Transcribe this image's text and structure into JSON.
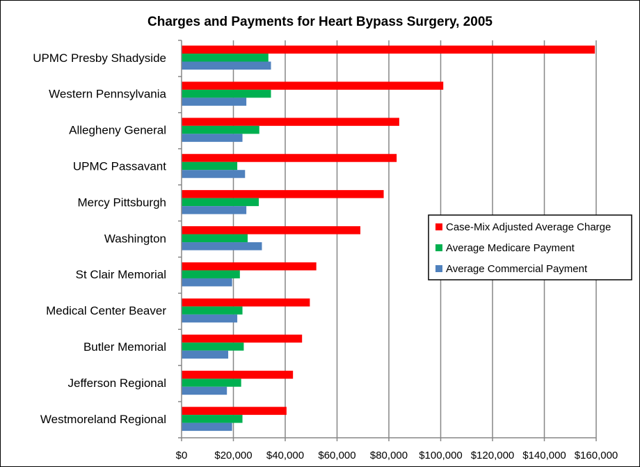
{
  "chart_data": {
    "type": "bar",
    "orientation": "horizontal",
    "title": "Charges and Payments for Heart Bypass Surgery, 2005",
    "categories": [
      "UPMC Presby Shadyside",
      "Western Pennsylvania",
      "Allegheny General",
      "UPMC Passavant",
      "Mercy Pittsburgh",
      "Washington",
      "St Clair Memorial",
      "Medical Center Beaver",
      "Butler Memorial",
      "Jefferson Regional",
      "Westmoreland Regional"
    ],
    "series": [
      {
        "name": "Case-Mix Adjusted Average Charge",
        "color": "#ff0000",
        "values": [
          159500,
          101000,
          84000,
          83000,
          78000,
          69000,
          52000,
          49500,
          46500,
          43000,
          40500
        ]
      },
      {
        "name": "Average Medicare Payment",
        "color": "#00b050",
        "values": [
          33500,
          34500,
          30000,
          21500,
          29800,
          25500,
          22500,
          23500,
          24000,
          23000,
          23500
        ]
      },
      {
        "name": "Average Commercial Payment",
        "color": "#4f81bd",
        "values": [
          34500,
          25000,
          23500,
          24500,
          25000,
          31000,
          19500,
          21500,
          18000,
          17500,
          19500
        ]
      }
    ],
    "xlim": [
      0,
      160000
    ],
    "xticks": [
      0,
      20000,
      40000,
      60000,
      80000,
      100000,
      120000,
      140000,
      160000
    ],
    "xtick_labels": [
      "$0",
      "$20,000",
      "$40,000",
      "$60,000",
      "$80,000",
      "$100,000",
      "$120,000",
      "$140,000",
      "$160,000"
    ],
    "grid": true,
    "legend_position": "right"
  }
}
